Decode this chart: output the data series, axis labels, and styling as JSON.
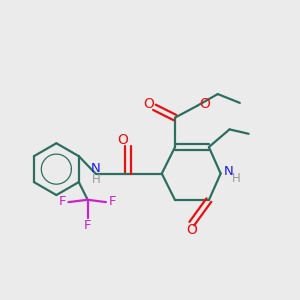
{
  "bg_color": "#ebebeb",
  "bond_color": "#2d6e5e",
  "O_color": "#e81010",
  "N_color": "#1a1aee",
  "F_color": "#cc22cc",
  "lw": 1.6,
  "fig_size": [
    3.0,
    3.0
  ],
  "dpi": 100,
  "xlim": [
    0,
    10
  ],
  "ylim": [
    0,
    10
  ]
}
